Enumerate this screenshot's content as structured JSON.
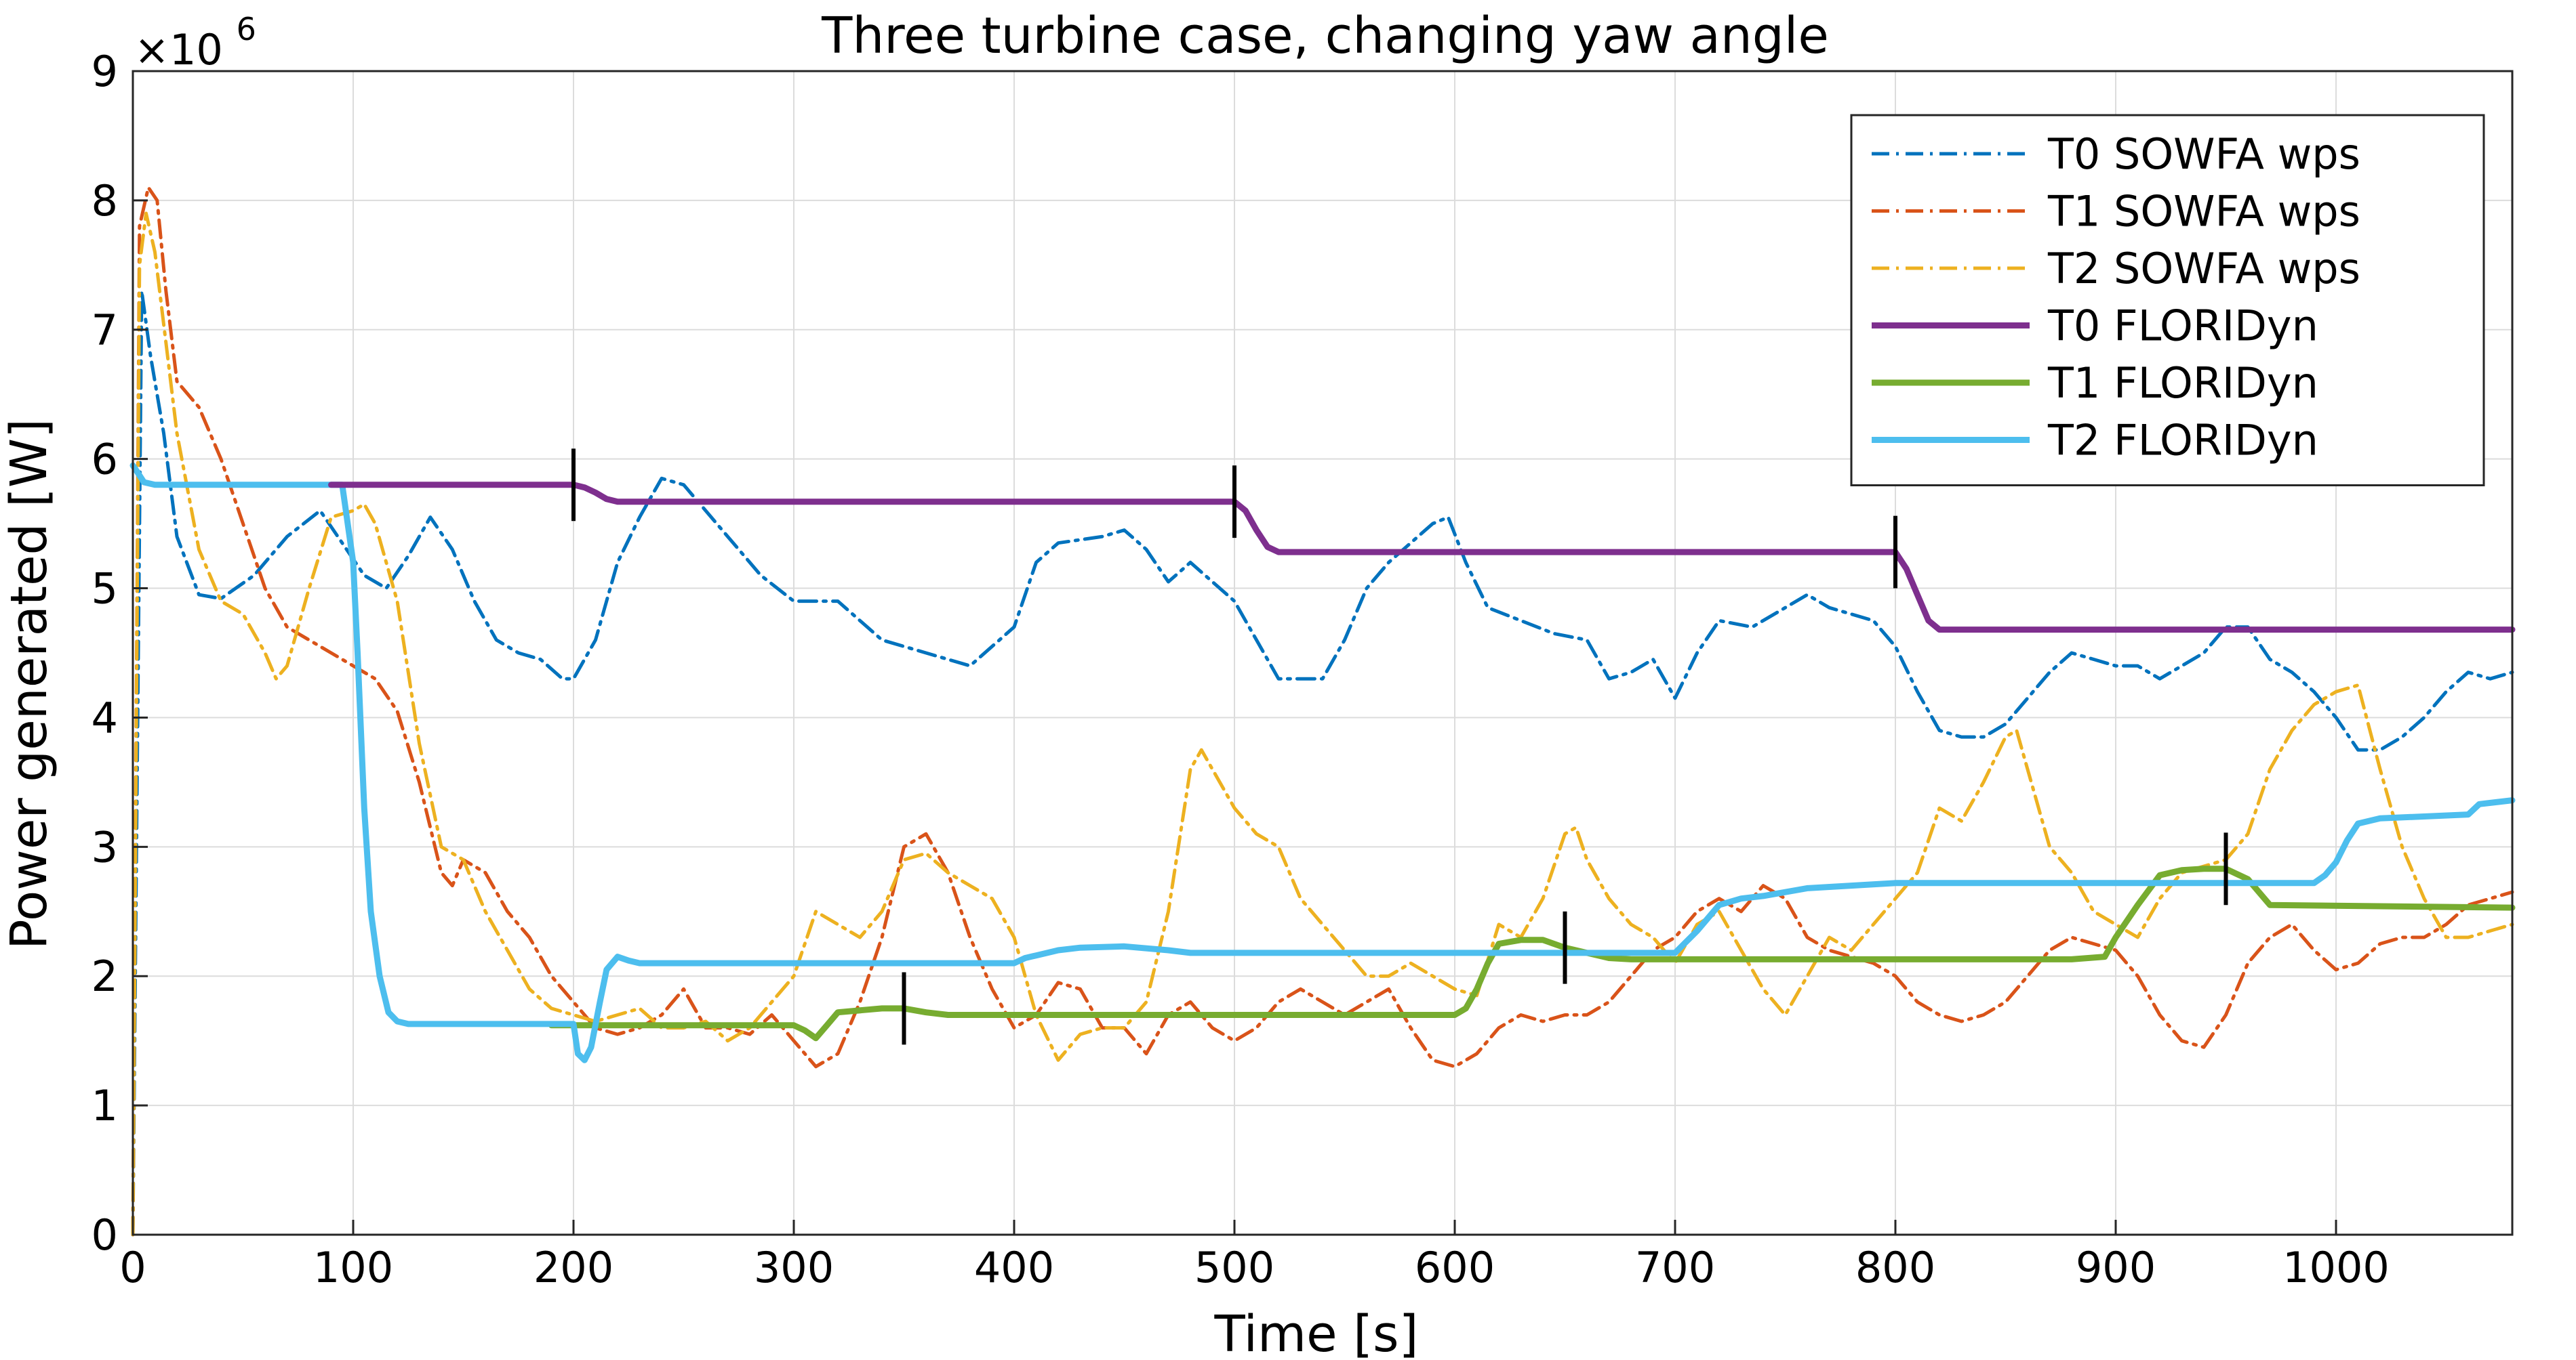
{
  "chart_data": {
    "type": "line",
    "title": "Three turbine case, changing yaw angle",
    "xlabel": "Time [s]",
    "ylabel": "Power generated [W]",
    "y_multiplier": {
      "base": "×10",
      "exponent": "6"
    },
    "xlim": [
      0,
      1080
    ],
    "ylim": [
      0,
      9
    ],
    "xticks": [
      0,
      100,
      200,
      300,
      400,
      500,
      600,
      700,
      800,
      900,
      1000
    ],
    "yticks": [
      0,
      1,
      2,
      3,
      4,
      5,
      6,
      7,
      8,
      9
    ],
    "grid": true,
    "legend_position": "top-right",
    "series": [
      {
        "name": "T0 SOWFA wps",
        "style": "dashdot",
        "color": "#0072BD",
        "x": [
          0,
          4,
          8,
          14,
          20,
          30,
          40,
          55,
          70,
          85,
          95,
          105,
          115,
          125,
          135,
          145,
          155,
          165,
          175,
          185,
          195,
          200,
          210,
          220,
          230,
          240,
          250,
          260,
          270,
          285,
          300,
          320,
          340,
          360,
          380,
          400,
          410,
          420,
          440,
          450,
          460,
          470,
          480,
          490,
          500,
          510,
          520,
          530,
          540,
          550,
          560,
          570,
          580,
          590,
          597,
          605,
          615,
          630,
          645,
          660,
          670,
          680,
          690,
          700,
          710,
          720,
          735,
          750,
          760,
          770,
          780,
          790,
          800,
          810,
          820,
          830,
          840,
          850,
          860,
          870,
          880,
          890,
          900,
          910,
          920,
          930,
          940,
          950,
          960,
          970,
          980,
          990,
          1000,
          1010,
          1020,
          1030,
          1040,
          1050,
          1060,
          1070,
          1080
        ],
        "y": [
          0,
          7.3,
          6.8,
          6.2,
          5.4,
          4.95,
          4.92,
          5.1,
          5.4,
          5.6,
          5.35,
          5.1,
          5.0,
          5.25,
          5.55,
          5.3,
          4.9,
          4.6,
          4.5,
          4.45,
          4.3,
          4.3,
          4.6,
          5.2,
          5.55,
          5.85,
          5.8,
          5.6,
          5.4,
          5.1,
          4.9,
          4.9,
          4.6,
          4.5,
          4.4,
          4.7,
          5.2,
          5.35,
          5.4,
          5.45,
          5.3,
          5.05,
          5.2,
          5.05,
          4.9,
          4.6,
          4.3,
          4.3,
          4.3,
          4.6,
          5.0,
          5.2,
          5.35,
          5.5,
          5.55,
          5.2,
          4.85,
          4.75,
          4.65,
          4.6,
          4.3,
          4.35,
          4.45,
          4.15,
          4.5,
          4.75,
          4.7,
          4.85,
          4.95,
          4.85,
          4.8,
          4.75,
          4.55,
          4.2,
          3.9,
          3.85,
          3.85,
          3.95,
          4.15,
          4.35,
          4.5,
          4.45,
          4.4,
          4.4,
          4.3,
          4.4,
          4.5,
          4.7,
          4.7,
          4.45,
          4.35,
          4.2,
          4.0,
          3.75,
          3.75,
          3.85,
          4.0,
          4.2,
          4.35,
          4.3,
          4.35
        ]
      },
      {
        "name": "T1 SOWFA wps",
        "style": "dashdot",
        "color": "#D95319",
        "x": [
          0,
          3,
          7,
          11,
          15,
          20,
          30,
          40,
          50,
          60,
          70,
          80,
          90,
          100,
          110,
          120,
          130,
          140,
          145,
          150,
          160,
          170,
          180,
          190,
          200,
          210,
          220,
          230,
          240,
          250,
          260,
          270,
          280,
          290,
          300,
          310,
          320,
          330,
          340,
          350,
          360,
          370,
          380,
          390,
          400,
          410,
          420,
          430,
          440,
          450,
          460,
          470,
          480,
          490,
          500,
          510,
          520,
          530,
          540,
          550,
          560,
          570,
          580,
          590,
          600,
          610,
          620,
          630,
          640,
          650,
          660,
          670,
          680,
          690,
          700,
          710,
          720,
          730,
          740,
          750,
          760,
          770,
          780,
          790,
          800,
          810,
          820,
          830,
          840,
          850,
          860,
          870,
          880,
          890,
          900,
          910,
          920,
          930,
          940,
          950,
          960,
          970,
          980,
          990,
          1000,
          1010,
          1020,
          1030,
          1040,
          1050,
          1060,
          1070,
          1080
        ],
        "y": [
          0,
          7.8,
          8.1,
          8.0,
          7.3,
          6.6,
          6.4,
          6.0,
          5.5,
          5.0,
          4.7,
          4.6,
          4.5,
          4.4,
          4.3,
          4.05,
          3.5,
          2.8,
          2.7,
          2.9,
          2.8,
          2.5,
          2.3,
          2.0,
          1.8,
          1.6,
          1.55,
          1.6,
          1.7,
          1.9,
          1.6,
          1.6,
          1.55,
          1.7,
          1.5,
          1.3,
          1.4,
          1.8,
          2.3,
          3.0,
          3.1,
          2.8,
          2.3,
          1.9,
          1.6,
          1.7,
          1.95,
          1.9,
          1.6,
          1.6,
          1.4,
          1.7,
          1.8,
          1.6,
          1.5,
          1.6,
          1.8,
          1.9,
          1.8,
          1.7,
          1.8,
          1.9,
          1.6,
          1.35,
          1.3,
          1.4,
          1.6,
          1.7,
          1.65,
          1.7,
          1.7,
          1.8,
          2.0,
          2.2,
          2.3,
          2.5,
          2.6,
          2.5,
          2.7,
          2.6,
          2.3,
          2.2,
          2.15,
          2.1,
          2.0,
          1.8,
          1.7,
          1.65,
          1.7,
          1.8,
          2.0,
          2.2,
          2.3,
          2.25,
          2.2,
          2.0,
          1.7,
          1.5,
          1.45,
          1.7,
          2.1,
          2.3,
          2.4,
          2.2,
          2.05,
          2.1,
          2.25,
          2.3,
          2.3,
          2.4,
          2.55,
          2.6,
          2.65
        ]
      },
      {
        "name": "T2 SOWFA wps",
        "style": "dashdot",
        "color": "#EDB120",
        "x": [
          0,
          3,
          6,
          10,
          15,
          20,
          30,
          40,
          50,
          60,
          65,
          70,
          80,
          90,
          100,
          105,
          110,
          120,
          130,
          140,
          150,
          160,
          170,
          180,
          190,
          200,
          210,
          220,
          230,
          240,
          250,
          260,
          270,
          280,
          290,
          300,
          310,
          320,
          330,
          340,
          350,
          360,
          370,
          380,
          390,
          400,
          410,
          420,
          430,
          440,
          450,
          460,
          470,
          480,
          485,
          490,
          500,
          510,
          520,
          530,
          540,
          550,
          560,
          570,
          580,
          590,
          600,
          610,
          620,
          630,
          640,
          650,
          655,
          660,
          670,
          680,
          690,
          700,
          710,
          720,
          730,
          740,
          750,
          760,
          770,
          780,
          790,
          800,
          810,
          820,
          830,
          840,
          850,
          855,
          860,
          870,
          880,
          890,
          900,
          910,
          920,
          930,
          940,
          950,
          960,
          970,
          980,
          990,
          1000,
          1010,
          1020,
          1030,
          1040,
          1050,
          1060,
          1070,
          1080
        ],
        "y": [
          0,
          7.5,
          7.9,
          7.6,
          6.9,
          6.2,
          5.3,
          4.9,
          4.8,
          4.5,
          4.3,
          4.4,
          5.0,
          5.55,
          5.6,
          5.65,
          5.5,
          4.9,
          3.8,
          3.0,
          2.9,
          2.5,
          2.2,
          1.9,
          1.75,
          1.7,
          1.65,
          1.7,
          1.75,
          1.6,
          1.6,
          1.65,
          1.5,
          1.6,
          1.8,
          2.0,
          2.5,
          2.4,
          2.3,
          2.5,
          2.9,
          2.95,
          2.8,
          2.7,
          2.6,
          2.3,
          1.7,
          1.35,
          1.55,
          1.6,
          1.6,
          1.8,
          2.5,
          3.6,
          3.75,
          3.6,
          3.3,
          3.1,
          3.0,
          2.6,
          2.4,
          2.2,
          2.0,
          2.0,
          2.1,
          2.0,
          1.9,
          1.85,
          2.4,
          2.3,
          2.6,
          3.1,
          3.15,
          2.9,
          2.6,
          2.4,
          2.3,
          2.1,
          2.4,
          2.5,
          2.2,
          1.9,
          1.7,
          2.0,
          2.3,
          2.2,
          2.4,
          2.6,
          2.8,
          3.3,
          3.2,
          3.5,
          3.85,
          3.9,
          3.6,
          3.0,
          2.8,
          2.5,
          2.4,
          2.3,
          2.6,
          2.8,
          2.85,
          2.9,
          3.1,
          3.6,
          3.9,
          4.1,
          4.2,
          4.25,
          3.6,
          3.0,
          2.6,
          2.3,
          2.3,
          2.35,
          2.4
        ]
      },
      {
        "name": "T0 FLORIDyn",
        "style": "solid",
        "color": "#7E2F8E",
        "x": [
          90,
          200,
          205,
          210,
          215,
          220,
          500,
          505,
          510,
          515,
          520,
          800,
          805,
          810,
          815,
          820,
          1080
        ],
        "y": [
          5.8,
          5.8,
          5.78,
          5.74,
          5.69,
          5.67,
          5.67,
          5.6,
          5.45,
          5.32,
          5.28,
          5.28,
          5.15,
          4.95,
          4.75,
          4.68,
          4.68
        ]
      },
      {
        "name": "T1 FLORIDyn",
        "style": "solid",
        "color": "#77AC30",
        "x": [
          190,
          300,
          305,
          310,
          315,
          320,
          340,
          350,
          360,
          370,
          600,
          605,
          610,
          615,
          620,
          630,
          640,
          650,
          660,
          670,
          680,
          700,
          800,
          880,
          895,
          900,
          910,
          920,
          930,
          940,
          950,
          960,
          970,
          1080
        ],
        "y": [
          1.62,
          1.62,
          1.58,
          1.52,
          1.62,
          1.72,
          1.75,
          1.75,
          1.72,
          1.7,
          1.7,
          1.75,
          1.9,
          2.1,
          2.25,
          2.28,
          2.28,
          2.22,
          2.18,
          2.14,
          2.13,
          2.13,
          2.13,
          2.13,
          2.15,
          2.3,
          2.55,
          2.78,
          2.82,
          2.83,
          2.83,
          2.75,
          2.55,
          2.53
        ]
      },
      {
        "name": "T2 FLORIDyn",
        "style": "solid",
        "color": "#4DBEEE",
        "x": [
          0,
          2,
          5,
          10,
          95,
          100,
          102,
          105,
          108,
          112,
          116,
          120,
          125,
          130,
          200,
          202,
          205,
          208,
          212,
          215,
          220,
          225,
          230,
          300,
          400,
          405,
          410,
          415,
          420,
          430,
          450,
          470,
          480,
          500,
          700,
          710,
          720,
          730,
          740,
          760,
          800,
          900,
          950,
          990,
          995,
          1000,
          1005,
          1010,
          1020,
          1060,
          1065,
          1080
        ],
        "y": [
          5.95,
          5.9,
          5.82,
          5.8,
          5.8,
          5.2,
          4.5,
          3.3,
          2.5,
          2.0,
          1.72,
          1.65,
          1.63,
          1.63,
          1.63,
          1.4,
          1.35,
          1.45,
          1.8,
          2.05,
          2.15,
          2.12,
          2.1,
          2.1,
          2.1,
          2.14,
          2.16,
          2.18,
          2.2,
          2.22,
          2.23,
          2.2,
          2.18,
          2.18,
          2.18,
          2.35,
          2.55,
          2.6,
          2.62,
          2.68,
          2.72,
          2.72,
          2.72,
          2.72,
          2.78,
          2.88,
          3.05,
          3.18,
          3.22,
          3.25,
          3.33,
          3.36
        ]
      }
    ],
    "markers": [
      {
        "x": 200,
        "y": 5.8
      },
      {
        "x": 500,
        "y": 5.67
      },
      {
        "x": 800,
        "y": 5.28
      },
      {
        "x": 350,
        "y": 1.75
      },
      {
        "x": 650,
        "y": 2.22
      },
      {
        "x": 950,
        "y": 2.83
      }
    ]
  }
}
